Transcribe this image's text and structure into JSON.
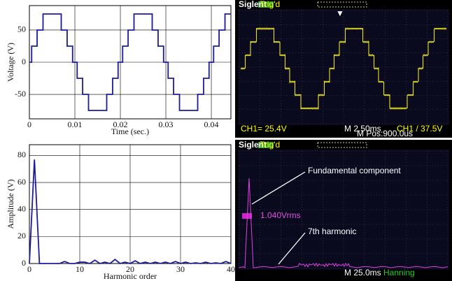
{
  "chart_data": [
    {
      "type": "line",
      "xlabel": "Time (sec.)",
      "ylabel": "Voltage (V)",
      "color": "#1c1c9a",
      "grid": true,
      "xlim": [
        0,
        0.0443
      ],
      "xticks": [
        0,
        0.01,
        0.02,
        0.03,
        0.04
      ],
      "ylim": [
        -88,
        88
      ],
      "yticks": [
        -50,
        0,
        50
      ],
      "x": [
        0,
        0.0005,
        0.0005,
        0.0017,
        0.0017,
        0.003,
        0.003,
        0.007,
        0.007,
        0.0083,
        0.0083,
        0.0095,
        0.0095,
        0.0105,
        0.0105,
        0.0117,
        0.0117,
        0.013,
        0.013,
        0.017,
        0.017,
        0.0183,
        0.0183,
        0.0195,
        0.0195,
        0.0205,
        0.0205,
        0.0217,
        0.0217,
        0.023,
        0.023,
        0.027,
        0.027,
        0.0283,
        0.0283,
        0.0295,
        0.0295,
        0.0305,
        0.0305,
        0.0317,
        0.0317,
        0.033,
        0.033,
        0.037,
        0.037,
        0.0383,
        0.0383,
        0.0395,
        0.0395,
        0.0405,
        0.0405,
        0.0417,
        0.0417,
        0.043,
        0.043,
        0.0443
      ],
      "values": [
        0,
        0,
        25,
        25,
        50,
        50,
        75,
        75,
        50,
        50,
        25,
        25,
        0,
        0,
        -25,
        -25,
        -50,
        -50,
        -75,
        -75,
        -50,
        -50,
        -25,
        -25,
        0,
        0,
        25,
        25,
        50,
        50,
        75,
        75,
        50,
        50,
        25,
        25,
        0,
        0,
        -25,
        -25,
        -50,
        -50,
        -75,
        -75,
        -50,
        -50,
        -25,
        -25,
        0,
        0,
        25,
        25,
        50,
        50,
        75,
        75
      ]
    },
    {
      "type": "line",
      "xlabel": "Harmonic order",
      "ylabel": "Amplitude (V)",
      "color": "#1c1c9a",
      "grid": true,
      "xlim": [
        0,
        40
      ],
      "xticks": [
        0,
        10,
        20,
        30,
        40
      ],
      "ylim": [
        0,
        88
      ],
      "yticks": [
        0,
        20,
        40,
        60,
        80
      ],
      "x": [
        0,
        1,
        2,
        3,
        4,
        5,
        6,
        7,
        8,
        9,
        10,
        11,
        12,
        13,
        14,
        15,
        16,
        17,
        18,
        19,
        20,
        21,
        22,
        23,
        24,
        25,
        26,
        27,
        28,
        29,
        30,
        31,
        32,
        33,
        34,
        35,
        36,
        37,
        38,
        39,
        40
      ],
      "values": [
        0,
        77,
        0,
        0,
        0,
        0,
        0,
        1.5,
        0,
        0,
        1,
        1,
        0,
        2.5,
        0,
        1,
        0,
        3,
        0,
        1,
        0,
        2,
        0,
        1,
        0,
        1,
        0,
        1,
        0,
        1.5,
        0,
        1,
        0,
        0.5,
        0,
        1,
        0,
        0.5,
        0,
        1.5,
        0
      ]
    }
  ],
  "scope_screens": [
    {
      "brand": "Siglent",
      "status": "Trig'd",
      "labels": [
        "CH1= 25.4V",
        "M 2.50ms",
        "M Pos:900.0us",
        "CH1 / 37.5V"
      ]
    },
    {
      "brand": "Siglent",
      "status": "Trig'd",
      "annotations": [
        "Fundamental component",
        "7th harmonic"
      ],
      "labels": [
        "1.040Vrms",
        "M 25.0ms",
        "Hanning"
      ]
    }
  ]
}
